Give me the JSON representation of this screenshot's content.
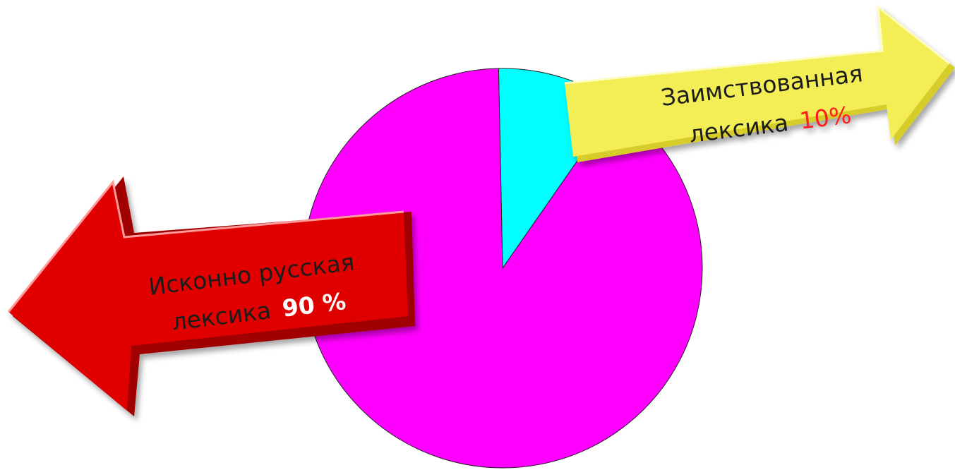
{
  "chart_data": {
    "type": "pie",
    "title": "",
    "slices": [
      {
        "label_line1": "Исконно русская",
        "label_line2": "лексика",
        "value_text": "90 %",
        "value": 90,
        "color": "#ff00ff",
        "value_color": "#ffffff"
      },
      {
        "label_line1": "Заимствованная",
        "label_line2": "лексика",
        "value_text": "10%",
        "value": 10,
        "color": "#00ffff",
        "value_color": "#ff1a1a"
      }
    ],
    "legend": "arrow-callouts",
    "grid": false
  },
  "colors": {
    "arrow_native": "#e00000",
    "arrow_native_dark": "#a00000",
    "arrow_borrowed": "#f3ee55",
    "arrow_borrowed_dark": "#d6cc2a"
  }
}
